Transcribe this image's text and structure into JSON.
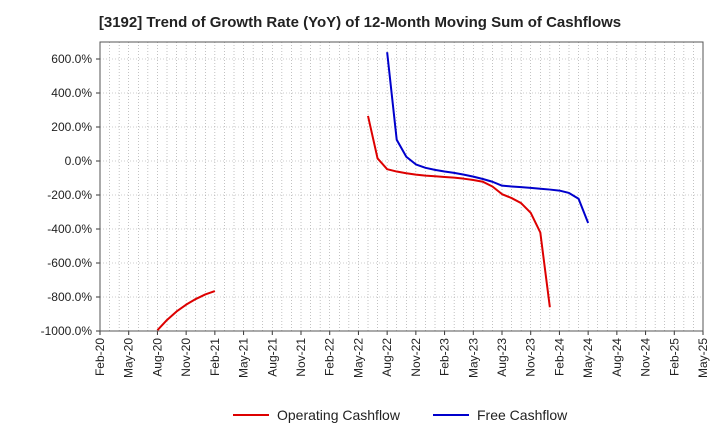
{
  "chart_data": {
    "type": "line",
    "title": "[3192]  Trend of Growth Rate (YoY) of 12-Month Moving Sum of Cashflows",
    "xlabel": "",
    "ylabel": "",
    "ylim": [
      -1000,
      700
    ],
    "yticks": [
      -1000,
      -800,
      -600,
      -400,
      -200,
      0,
      200,
      400,
      600
    ],
    "ytick_labels": [
      "-1000.0%",
      "-800.0%",
      "-600.0%",
      "-400.0%",
      "-200.0%",
      "0.0%",
      "200.0%",
      "400.0%",
      "600.0%"
    ],
    "xlim": [
      "2020-02",
      "2025-05"
    ],
    "xtick_labels": [
      "Feb-20",
      "May-20",
      "Aug-20",
      "Nov-20",
      "Feb-21",
      "May-21",
      "Aug-21",
      "Nov-21",
      "Feb-22",
      "May-22",
      "Aug-22",
      "Nov-22",
      "Feb-23",
      "May-23",
      "Aug-23",
      "Nov-23",
      "Feb-24",
      "May-24",
      "Aug-24",
      "Nov-24",
      "Feb-25",
      "May-25"
    ],
    "grid": true,
    "legend_position": "bottom",
    "series": [
      {
        "name": "Operating Cashflow",
        "color": "#dd0000",
        "segments": [
          {
            "x": [
              "2020-08",
              "2020-09",
              "2020-10",
              "2020-11",
              "2020-12",
              "2021-01",
              "2021-02"
            ],
            "y": [
              -995,
              -935,
              -885,
              -845,
              -812,
              -785,
              -765
            ]
          },
          {
            "x": [
              "2022-06",
              "2022-07",
              "2022-08",
              "2022-09",
              "2022-10",
              "2022-11",
              "2022-12",
              "2023-01",
              "2023-02",
              "2023-03",
              "2023-04",
              "2023-05",
              "2023-06",
              "2023-07",
              "2023-08",
              "2023-09",
              "2023-10",
              "2023-11",
              "2023-12",
              "2024-01"
            ],
            "y": [
              265,
              15,
              -48,
              -62,
              -72,
              -80,
              -86,
              -90,
              -94,
              -98,
              -104,
              -112,
              -122,
              -150,
              -195,
              -218,
              -248,
              -305,
              -420,
              -860
            ]
          }
        ]
      },
      {
        "name": "Free Cashflow",
        "color": "#0000cc",
        "segments": [
          {
            "x": [
              "2022-08",
              "2022-09",
              "2022-10",
              "2022-11",
              "2022-12",
              "2023-01",
              "2023-02",
              "2023-03",
              "2023-04",
              "2023-05",
              "2023-06",
              "2023-07",
              "2023-08",
              "2023-09",
              "2023-10",
              "2023-11",
              "2023-12",
              "2024-01",
              "2024-02",
              "2024-03",
              "2024-04",
              "2024-05"
            ],
            "y": [
              640,
              125,
              25,
              -20,
              -40,
              -52,
              -62,
              -70,
              -80,
              -92,
              -106,
              -122,
              -145,
              -150,
              -154,
              -158,
              -163,
              -168,
              -174,
              -188,
              -222,
              -365
            ]
          }
        ]
      }
    ]
  }
}
